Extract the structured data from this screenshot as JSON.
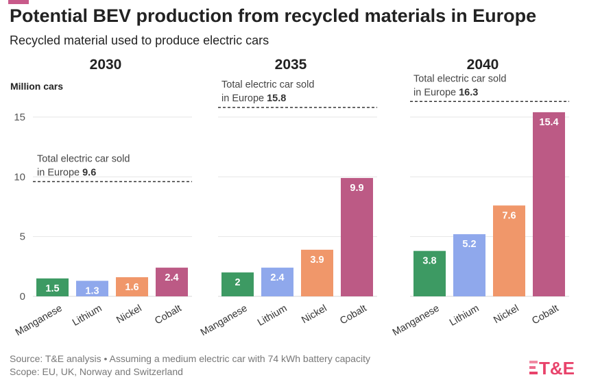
{
  "title": "Potential BEV production from recycled materials in Europe",
  "subtitle": "Recycled material used to produce electric cars",
  "chart_data": {
    "type": "bar",
    "ylabel": "Million cars",
    "ylim": [
      0,
      17
    ],
    "yticks": [
      0,
      5,
      10,
      15
    ],
    "categories": [
      "Manganese",
      "Lithium",
      "Nickel",
      "Cobalt"
    ],
    "colors": [
      "#3d9a63",
      "#8fa8ec",
      "#f0976a",
      "#bc5a85"
    ],
    "panels": [
      {
        "year": "2030",
        "values": [
          1.5,
          1.3,
          1.6,
          2.4
        ],
        "value_labels": [
          "1.5",
          "1.3",
          "1.6",
          "2.4"
        ],
        "reference": {
          "value": 9.6,
          "text": "Total electric car sold",
          "text2": "in Europe",
          "value_label": "9.6"
        }
      },
      {
        "year": "2035",
        "values": [
          2.0,
          2.4,
          3.9,
          9.9
        ],
        "value_labels": [
          "2",
          "2.4",
          "3.9",
          "9.9"
        ],
        "reference": {
          "value": 15.8,
          "text": "Total electric car sold",
          "text2": "in Europe",
          "value_label": "15.8"
        }
      },
      {
        "year": "2040",
        "values": [
          3.8,
          5.2,
          7.6,
          15.4
        ],
        "value_labels": [
          "3.8",
          "5.2",
          "7.6",
          "15.4"
        ],
        "reference": {
          "value": 16.3,
          "text": "Total electric car sold",
          "text2": "in Europe",
          "value_label": "16.3"
        }
      }
    ],
    "grid": true,
    "legend": "none"
  },
  "footer": {
    "source": "Source: T&E analysis • Assuming a medium electric car with 74 kWh battery capacity",
    "scope": "Scope: EU, UK, Norway and Switzerland"
  },
  "brand": {
    "logo_text": "T&E",
    "color": "#e8436b"
  }
}
